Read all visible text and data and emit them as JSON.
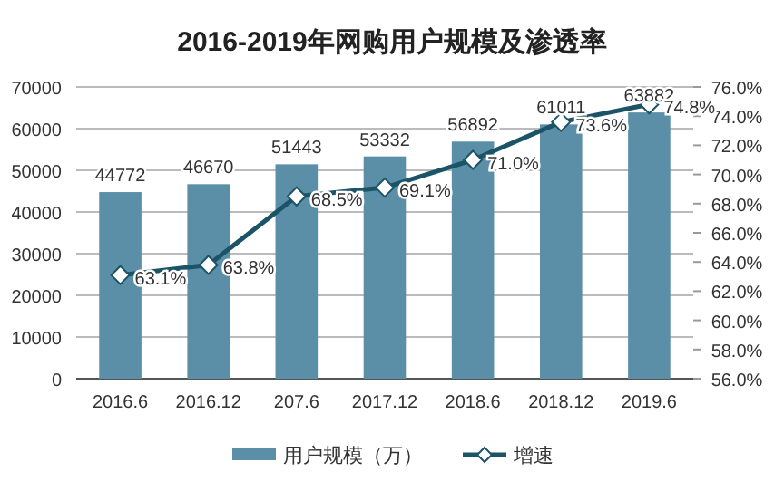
{
  "chart_data": {
    "type": "bar",
    "title": "2016-2019年网购用户规模及渗透率",
    "categories": [
      "2016.6",
      "2016.12",
      "207.6",
      "2017.12",
      "2018.6",
      "2018.12",
      "2019.6"
    ],
    "series": [
      {
        "name": "用户规模（万）",
        "color": "#5b8fa8",
        "values": [
          44772,
          46670,
          51443,
          53332,
          56892,
          61011,
          63882
        ],
        "value_labels": [
          "44772",
          "46670",
          "51443",
          "53332",
          "56892",
          "61011",
          "63882"
        ]
      },
      {
        "name": "增速",
        "type": "line",
        "axis": "y2",
        "color": "#1b5466",
        "marker": "diamond",
        "values": [
          63.1,
          63.8,
          68.5,
          69.1,
          71.0,
          73.6,
          74.8
        ],
        "value_labels": [
          "63.1%",
          "63.8%",
          "68.5%",
          "69.1%",
          "71.0%",
          "73.6%",
          "74.8%"
        ]
      }
    ],
    "ylim": [
      0,
      70000
    ],
    "yticks": [
      0,
      10000,
      20000,
      30000,
      40000,
      50000,
      60000,
      70000
    ],
    "y2lim": [
      56,
      76
    ],
    "y2ticks": [
      {
        "value": 56,
        "label": "56.0%"
      },
      {
        "value": 58,
        "label": "58.0%"
      },
      {
        "value": 60,
        "label": "60.0%"
      },
      {
        "value": 62,
        "label": "62.0%"
      },
      {
        "value": 64,
        "label": "64.0%"
      },
      {
        "value": 66,
        "label": "66.0%"
      },
      {
        "value": 68,
        "label": "68.0%"
      },
      {
        "value": 70,
        "label": "70.0%"
      },
      {
        "value": 72,
        "label": "72.0%"
      },
      {
        "value": 74,
        "label": "74.0%"
      },
      {
        "value": 76,
        "label": "76.0%"
      }
    ],
    "grid": "y",
    "legend": "bottom"
  }
}
